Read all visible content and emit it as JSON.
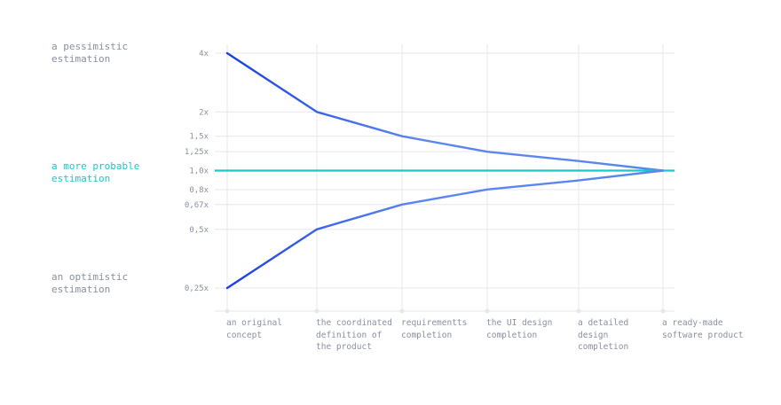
{
  "colors": {
    "grid": "#e6e6ef",
    "tick_text": "#8a8fa0",
    "side_label_text": "#8a8fa0",
    "probable": "#1ec6c6",
    "estimation_dark": "#1a3fe0",
    "estimation_light": "#5b86f0"
  },
  "side_labels": {
    "pessimistic": "a pessimistic\nestimation",
    "probable": "a more probable\nestimation",
    "optimistic": "an optimistic\nestimation"
  },
  "chart_data": {
    "type": "line",
    "y_scale": "log",
    "grid": true,
    "categories": [
      "an original\nconcept",
      "the coordinated\ndefinition of\nthe product",
      "requirementts\ncompletion",
      "the UI design\ncompletion",
      "a detailed\ndesign\ncompletion",
      "a ready-made\nsoftware product"
    ],
    "y_ticks": [
      {
        "value": 4,
        "label": "4x"
      },
      {
        "value": 2,
        "label": "2x"
      },
      {
        "value": 1.5,
        "label": "1,5x"
      },
      {
        "value": 1.25,
        "label": "1,25x"
      },
      {
        "value": 1.0,
        "label": "1,0x"
      },
      {
        "value": 0.8,
        "label": "0,8x"
      },
      {
        "value": 0.67,
        "label": "0,67x"
      },
      {
        "value": 0.5,
        "label": "0,5x"
      },
      {
        "value": 0.25,
        "label": "0,25x"
      }
    ],
    "series": [
      {
        "key": "pessimistic",
        "values": [
          4,
          2,
          1.5,
          1.25,
          1.12,
          1.0
        ]
      },
      {
        "key": "probable",
        "values": [
          1.0,
          1.0,
          1.0,
          1.0,
          1.0,
          1.0
        ]
      },
      {
        "key": "optimistic",
        "values": [
          0.25,
          0.5,
          0.67,
          0.8,
          0.89,
          1.0
        ]
      }
    ]
  }
}
